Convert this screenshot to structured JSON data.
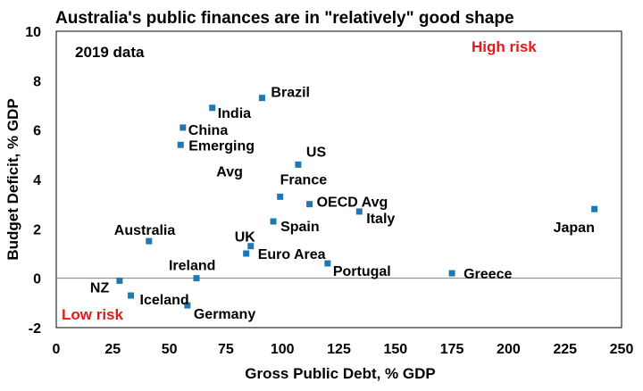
{
  "chart_data": {
    "type": "scatter",
    "title": "Australia's public finances are in \"relatively\" good shape",
    "xlabel": "Gross Public Debt, % GDP",
    "ylabel": "Budget Deficit, % GDP",
    "xlim": [
      0,
      250
    ],
    "ylim": [
      -2,
      10
    ],
    "xticks": [
      0,
      25,
      50,
      75,
      100,
      125,
      150,
      175,
      200,
      225,
      250
    ],
    "yticks": [
      -2,
      0,
      2,
      4,
      6,
      8,
      10
    ],
    "grid": false,
    "legend": "none",
    "marker_color": "#1f77b4",
    "zero_line_color": "#7f7f7f",
    "annotations": {
      "data_note": "2019 data",
      "high_risk": "High risk",
      "low_risk": "Low risk",
      "risk_color": "#e31a1c"
    },
    "points": [
      {
        "label": "Brazil",
        "x": 91,
        "y": 7.3
      },
      {
        "label": "India",
        "x": 69,
        "y": 6.9
      },
      {
        "label": "China",
        "x": 56,
        "y": 6.1
      },
      {
        "label": "Emerging Avg",
        "x": 55,
        "y": 5.4
      },
      {
        "label": "US",
        "x": 107,
        "y": 4.6
      },
      {
        "label": "France",
        "x": 99,
        "y": 3.3
      },
      {
        "label": "OECD Avg",
        "x": 112,
        "y": 3.0
      },
      {
        "label": "Italy",
        "x": 134,
        "y": 2.7
      },
      {
        "label": "Japan",
        "x": 238,
        "y": 2.8
      },
      {
        "label": "Spain",
        "x": 96,
        "y": 2.3
      },
      {
        "label": "Australia",
        "x": 41,
        "y": 1.5
      },
      {
        "label": "UK",
        "x": 86,
        "y": 1.3
      },
      {
        "label": "Euro Area",
        "x": 84,
        "y": 1.0
      },
      {
        "label": "Portugal",
        "x": 120,
        "y": 0.6
      },
      {
        "label": "Greece",
        "x": 175,
        "y": 0.2
      },
      {
        "label": "Ireland",
        "x": 62,
        "y": 0.0
      },
      {
        "label": "NZ",
        "x": 28,
        "y": -0.1
      },
      {
        "label": "Iceland",
        "x": 33,
        "y": -0.7
      },
      {
        "label": "Germany",
        "x": 58,
        "y": -1.1
      }
    ]
  }
}
